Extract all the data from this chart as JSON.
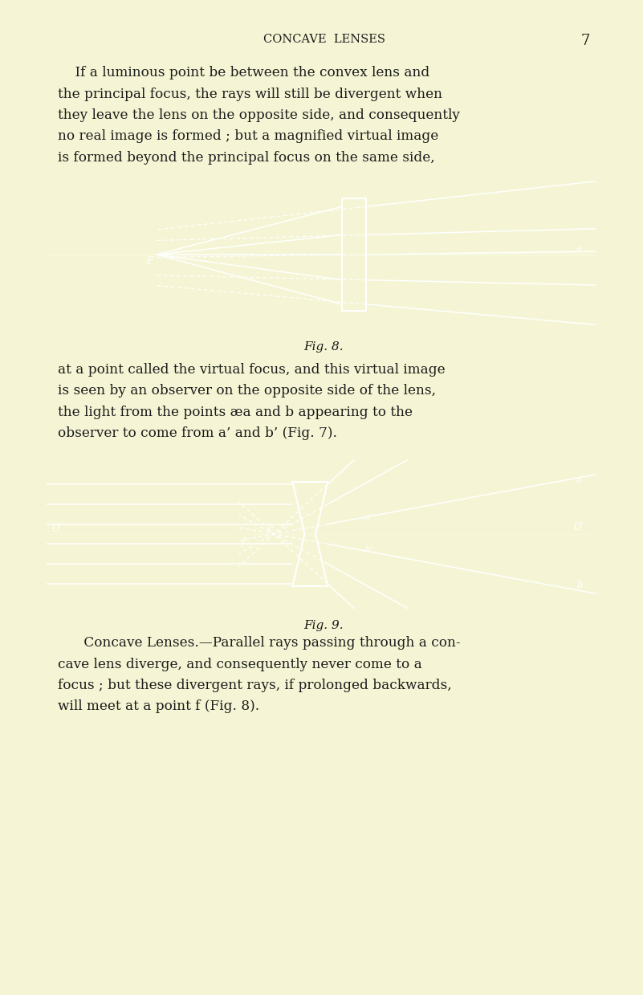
{
  "bg_color": "#f5f5d5",
  "fig_bg_color": "#f5f5d5",
  "page_width": 8.01,
  "page_height": 12.39,
  "header_text": "CONCAVE  LENSES",
  "page_number": "7",
  "fig8_caption": "Fig. 8.",
  "fig9_caption": "Fig. 9.",
  "diagram_bg": "#0d0d0d",
  "diagram_line_color": "#ffffff"
}
